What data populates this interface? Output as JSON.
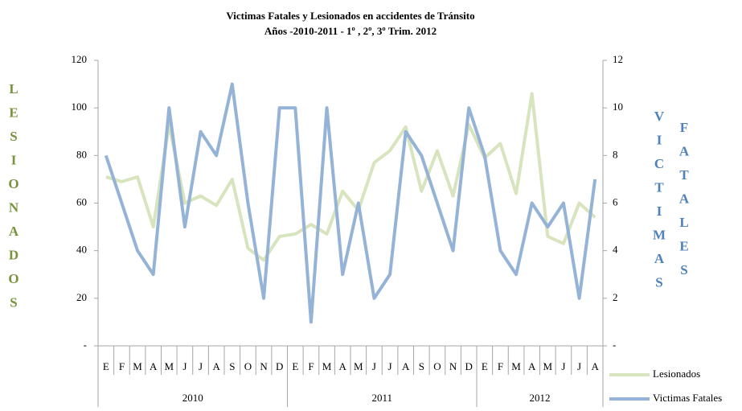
{
  "chart_data": {
    "type": "line",
    "title": [
      "Victimas Fatales y Lesionados en accidentes de Tránsito",
      "Años -2010-2011 - 1º ,  2º,  3º Trim. 2012"
    ],
    "ylabel": "LESIONADOS",
    "y2label": [
      "VICTIMAS",
      "FATALES"
    ],
    "categories": [
      "E",
      "F",
      "M",
      "A",
      "M",
      "J",
      "J",
      "A",
      "S",
      "O",
      "N",
      "D",
      "E",
      "F",
      "M",
      "A",
      "M",
      "J",
      "J",
      "A",
      "S",
      "O",
      "N",
      "D",
      "E",
      "F",
      "M",
      "A",
      "M",
      "J",
      "J",
      "A"
    ],
    "groups": [
      {
        "label": "2010",
        "count": 12
      },
      {
        "label": "2011",
        "count": 12
      },
      {
        "label": "2012",
        "count": 8
      }
    ],
    "ylim": [
      0,
      120
    ],
    "yticks": [
      {
        "value": 0,
        "label": "-"
      },
      20,
      40,
      60,
      80,
      100,
      120
    ],
    "y2lim": [
      0,
      12
    ],
    "y2ticks": [
      {
        "value": 0,
        "label": "-"
      },
      2,
      4,
      6,
      8,
      10,
      12
    ],
    "series": [
      {
        "name": "Lesionados",
        "color": "#d7e4bd",
        "values": [
          71,
          69,
          71,
          50,
          93,
          60,
          63,
          59,
          70,
          41,
          36,
          46,
          47,
          51,
          47,
          65,
          57,
          77,
          82,
          92,
          65,
          82,
          63,
          93,
          79,
          85,
          64,
          106,
          46,
          43,
          60,
          54
        ]
      },
      {
        "name": "Victimas Fatales",
        "color": "#95b3d7",
        "axis": "y2",
        "values": [
          8,
          6,
          4,
          3,
          10,
          5,
          9,
          8,
          11,
          6,
          2,
          10,
          10,
          1,
          10,
          3,
          6,
          2,
          3,
          9,
          8,
          6,
          4,
          10,
          8,
          4,
          3,
          6,
          5,
          6,
          2,
          7
        ]
      }
    ]
  }
}
